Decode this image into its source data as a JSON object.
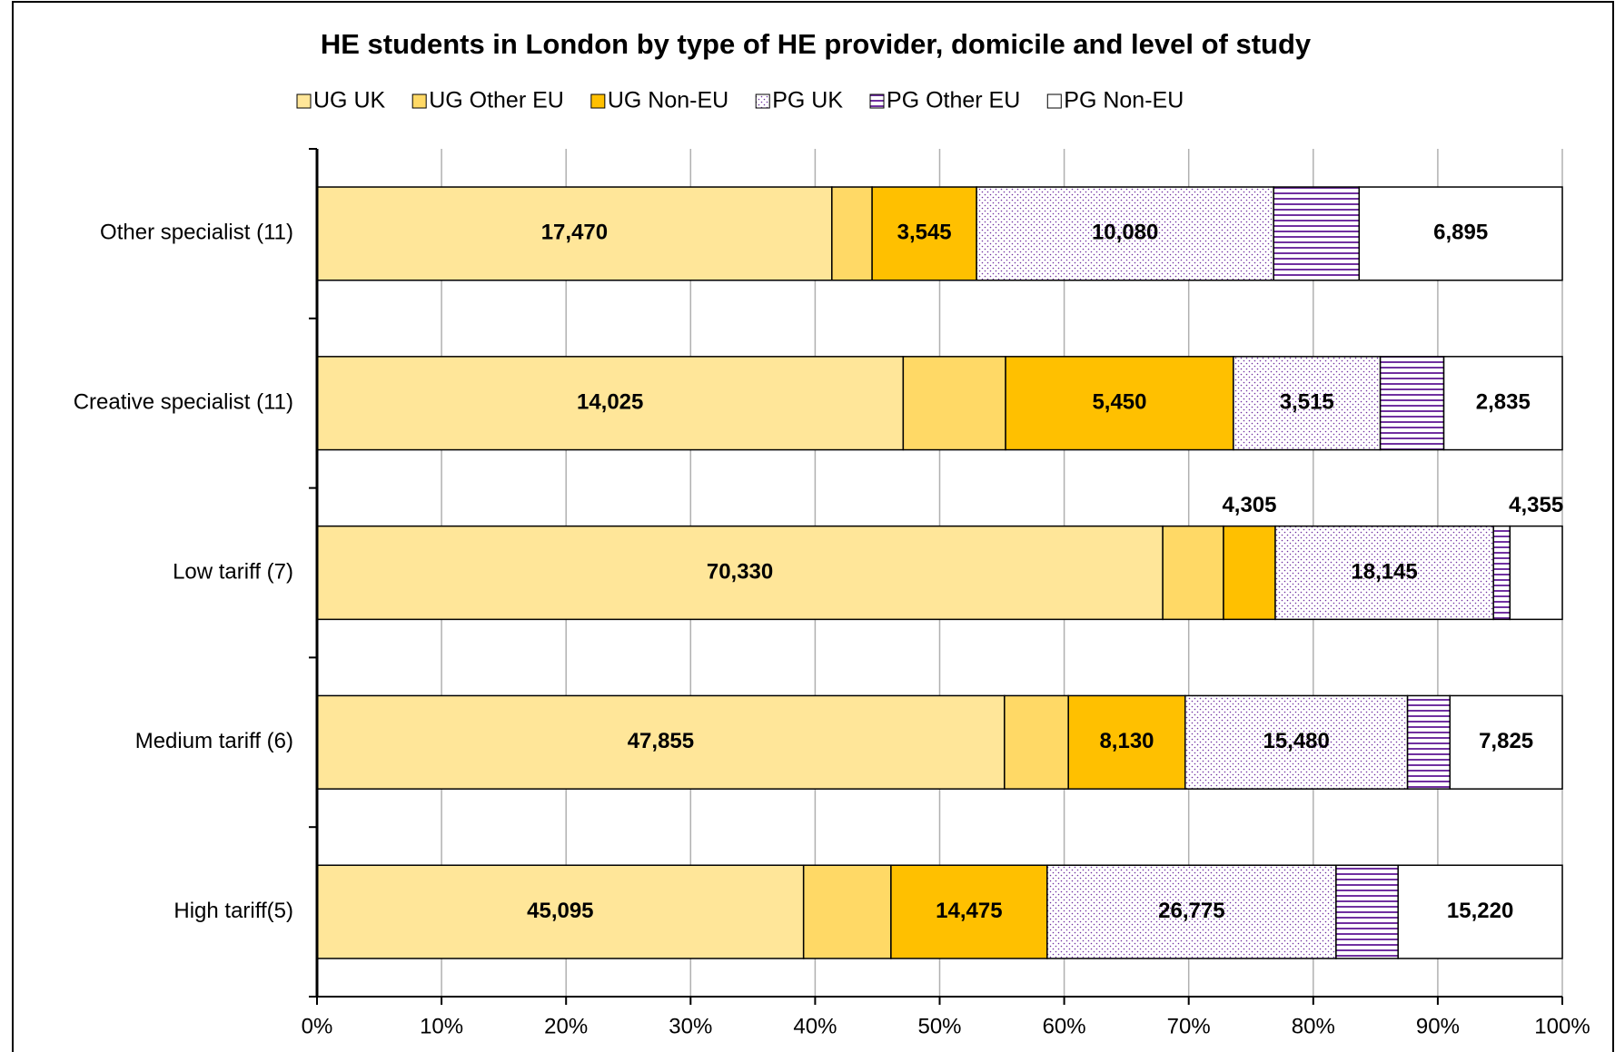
{
  "chart_data": {
    "type": "bar",
    "orientation": "horizontal",
    "stack": "percent",
    "title": "HE students in London by type of HE provider, domicile and level of study",
    "categories": [
      "Other specialist (11)",
      "Creative specialist (11)",
      "Low tariff (7)",
      "Medium tariff (6)",
      "High tariff(5)"
    ],
    "series": [
      {
        "name": "UG UK",
        "color": "#FFE699",
        "pattern": "solid",
        "values": [
          17470,
          14025,
          70330,
          47855,
          45095
        ],
        "value_labels": [
          "17,470",
          "14,025",
          "70,330",
          "47,855",
          "45,095"
        ]
      },
      {
        "name": "UG Other EU",
        "color": "#FFD966",
        "pattern": "solid",
        "values": [
          1365,
          2450,
          5050,
          4450,
          8100
        ],
        "value_labels": [
          null,
          null,
          null,
          null,
          null
        ]
      },
      {
        "name": "UG Non-EU",
        "color": "#FFC000",
        "pattern": "solid",
        "values": [
          3545,
          5450,
          4305,
          8130,
          14475
        ],
        "value_labels": [
          "3,545",
          "5,450",
          "4,305",
          "8,130",
          "14,475"
        ]
      },
      {
        "name": "PG UK",
        "color": "#7030A0",
        "pattern": "dots",
        "values": [
          10080,
          3515,
          18145,
          15480,
          26775
        ],
        "value_labels": [
          "10,080",
          "3,515",
          "18,145",
          "15,480",
          "26,775"
        ]
      },
      {
        "name": "PG Other EU",
        "color": "#7030A0",
        "pattern": "hlines",
        "values": [
          2900,
          1520,
          1370,
          2950,
          5750
        ],
        "value_labels": [
          null,
          null,
          null,
          null,
          null
        ]
      },
      {
        "name": "PG Non-EU",
        "color": "#FFFFFF",
        "pattern": "solid",
        "values": [
          6895,
          2835,
          4355,
          7825,
          15220
        ],
        "value_labels": [
          "6,895",
          "2,835",
          "4,355",
          "7,825",
          "15,220"
        ]
      }
    ],
    "xlim": [
      0,
      100
    ],
    "xticks": [
      {
        "value": 0,
        "label": "0%"
      },
      {
        "value": 10,
        "label": "10%"
      },
      {
        "value": 20,
        "label": "20%"
      },
      {
        "value": 30,
        "label": "30%"
      },
      {
        "value": 40,
        "label": "40%"
      },
      {
        "value": 50,
        "label": "50%"
      },
      {
        "value": 60,
        "label": "60%"
      },
      {
        "value": 70,
        "label": "70%"
      },
      {
        "value": 80,
        "label": "80%"
      },
      {
        "value": 90,
        "label": "90%"
      },
      {
        "value": 100,
        "label": "100%"
      }
    ],
    "grid": true,
    "legend": "top"
  }
}
